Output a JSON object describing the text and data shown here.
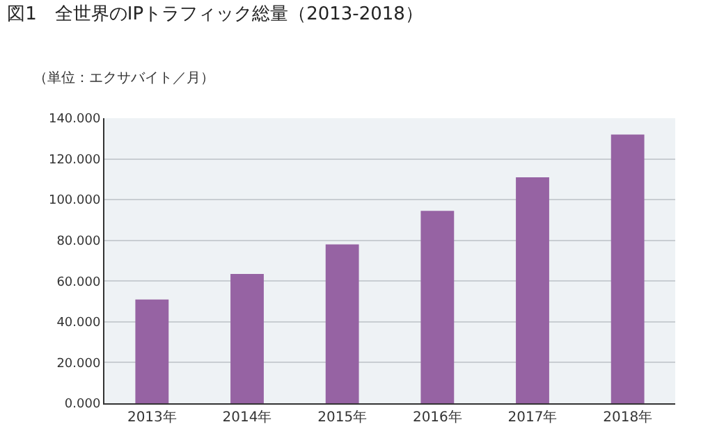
{
  "chart_data": {
    "type": "bar",
    "title": "図1　全世界のIPトラフィック総量（2013-2018）",
    "ylabel": "（単位：エクサバイト／月）",
    "categories": [
      "2013年",
      "2014年",
      "2015年",
      "2016年",
      "2017年",
      "2018年"
    ],
    "values": [
      51,
      63.5,
      78,
      94.5,
      111,
      132
    ],
    "color": "#9663a3",
    "ylim": [
      0,
      140
    ],
    "yticks": [
      {
        "value": 0,
        "label": "0.000"
      },
      {
        "value": 20,
        "label": "20.000"
      },
      {
        "value": 40,
        "label": "40.000"
      },
      {
        "value": 60,
        "label": "60.000"
      },
      {
        "value": 80,
        "label": "80.000"
      },
      {
        "value": 100,
        "label": "100.000"
      },
      {
        "value": 120,
        "label": "120.000"
      },
      {
        "value": 140,
        "label": "140.000"
      }
    ],
    "grid": "y"
  }
}
